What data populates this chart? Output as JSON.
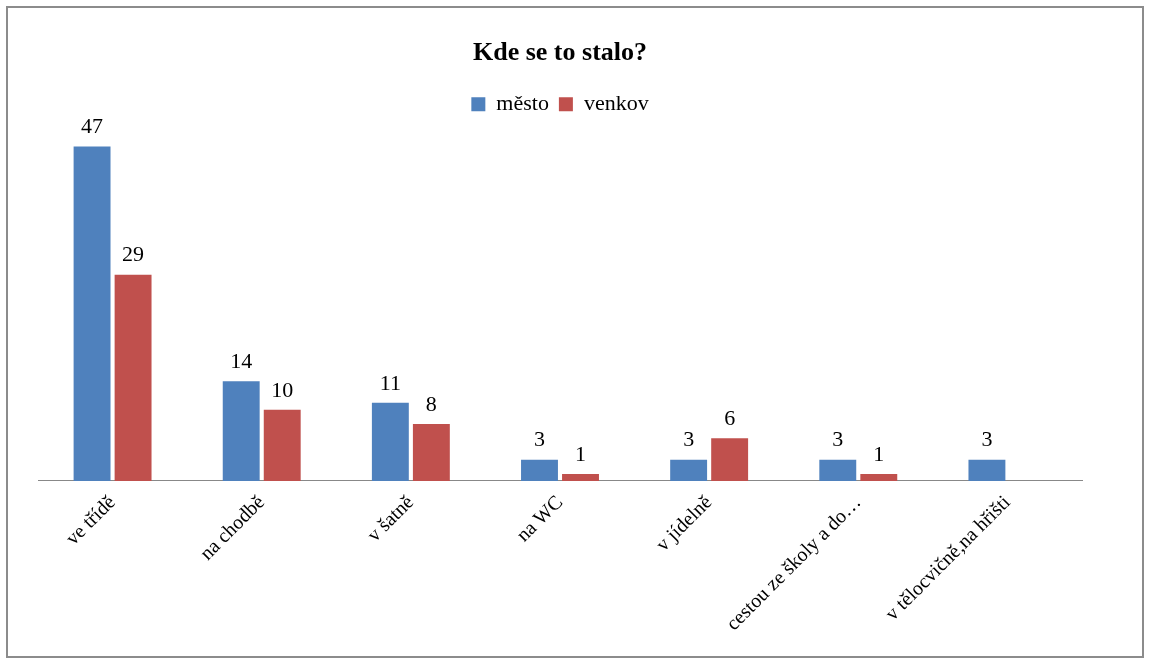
{
  "chart_data": {
    "type": "bar",
    "title": "Kde se to stalo?",
    "categories": [
      "ve třídě",
      "na chodbě",
      "v šatně",
      "na WC",
      "v jídelně",
      "cestou ze školy a do…",
      "v tělocvičně,na hřišti"
    ],
    "series": [
      {
        "name": "město",
        "color": "#4f81bd",
        "values": [
          47,
          14,
          11,
          3,
          3,
          3,
          3
        ]
      },
      {
        "name": "venkov",
        "color": "#c0504d",
        "values": [
          29,
          10,
          8,
          1,
          6,
          1,
          null
        ]
      }
    ],
    "data_labels": true,
    "legend": "top",
    "grid": false
  }
}
